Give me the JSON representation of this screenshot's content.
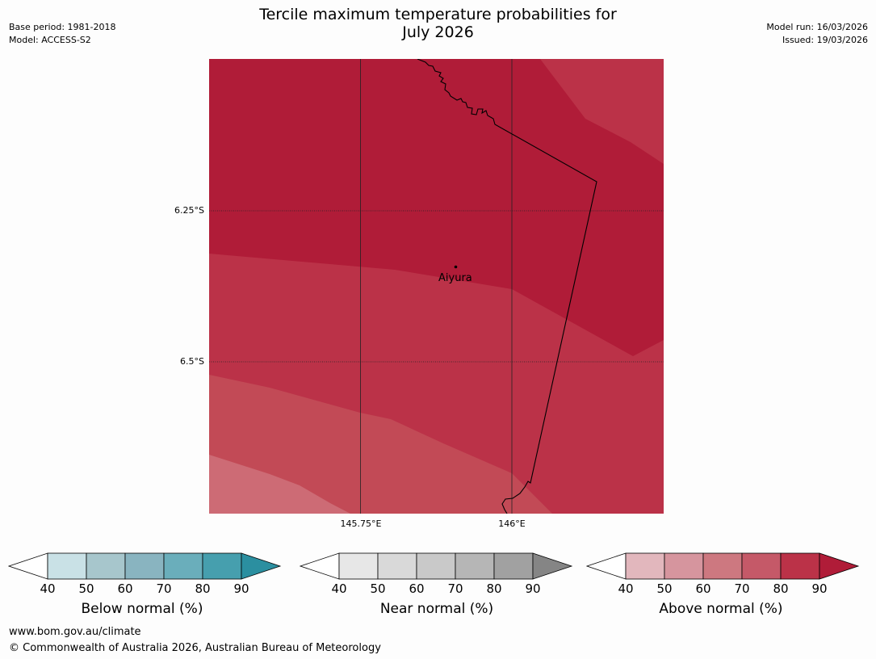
{
  "header": {
    "title_line1": "Tercile maximum temperature probabilities for",
    "title_line2": "July 2026",
    "base_period": "Base period: 1981-2018",
    "model": "Model: ACCESS-S2",
    "model_run": "Model run: 16/03/2026",
    "issued": "Issued: 19/03/2026"
  },
  "map": {
    "lat_labels": [
      "6.25°S",
      "6.5°S"
    ],
    "lon_labels": [
      "145.75°E",
      "146°E"
    ],
    "place": "Aiyura",
    "colors": {
      "above_90": "#b01c38",
      "above_80": "#bb3248",
      "above_70": "#c24a56",
      "above_60": "#cd6b75"
    }
  },
  "legends": [
    {
      "title": "Below normal (%)",
      "ticks": [
        "40",
        "50",
        "60",
        "70",
        "80",
        "90"
      ],
      "colors": [
        "#c9e1e6",
        "#a7c6cc",
        "#89b4c0",
        "#6aaebb",
        "#469fae",
        "#2b8fa0"
      ]
    },
    {
      "title": "Near normal (%)",
      "ticks": [
        "40",
        "50",
        "60",
        "70",
        "80",
        "90"
      ],
      "colors": [
        "#e7e7e7",
        "#d9d9d9",
        "#c9c9c9",
        "#b6b6b6",
        "#a1a1a1",
        "#858585"
      ]
    },
    {
      "title": "Above normal (%)",
      "ticks": [
        "40",
        "50",
        "60",
        "70",
        "80",
        "90"
      ],
      "colors": [
        "#e2b7bd",
        "#d6959e",
        "#cd7880",
        "#c55968",
        "#bb3248",
        "#b01c38"
      ]
    }
  ],
  "footer": {
    "url": "www.bom.gov.au/climate",
    "copyright": "© Commonwealth of Australia 2026, Australian Bureau of Meteorology"
  }
}
